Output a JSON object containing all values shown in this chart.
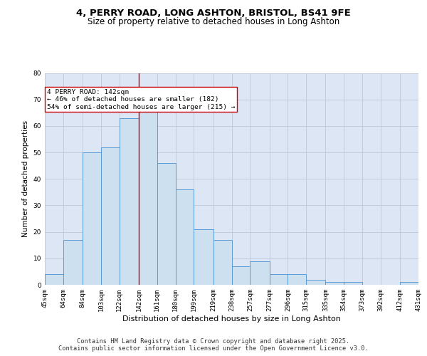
{
  "title_line1": "4, PERRY ROAD, LONG ASHTON, BRISTOL, BS41 9FE",
  "title_line2": "Size of property relative to detached houses in Long Ashton",
  "xlabel": "Distribution of detached houses by size in Long Ashton",
  "ylabel": "Number of detached properties",
  "bin_edges": [
    45,
    64,
    84,
    103,
    122,
    142,
    161,
    180,
    199,
    219,
    238,
    257,
    277,
    296,
    315,
    335,
    354,
    373,
    392,
    412,
    431
  ],
  "bar_heights": [
    4,
    17,
    50,
    52,
    63,
    67,
    46,
    36,
    21,
    17,
    7,
    9,
    4,
    4,
    2,
    1,
    1,
    0,
    0,
    1
  ],
  "tick_labels": [
    "45sqm",
    "64sqm",
    "84sqm",
    "103sqm",
    "122sqm",
    "142sqm",
    "161sqm",
    "180sqm",
    "199sqm",
    "219sqm",
    "238sqm",
    "257sqm",
    "277sqm",
    "296sqm",
    "315sqm",
    "335sqm",
    "354sqm",
    "373sqm",
    "392sqm",
    "412sqm",
    "431sqm"
  ],
  "bar_color": "#cce0f0",
  "bar_edge_color": "#5b9bd5",
  "grid_color": "#c0c8d8",
  "background_color": "#dce6f5",
  "reference_line_x": 142,
  "reference_line_color": "#cc0000",
  "annotation_text": "4 PERRY ROAD: 142sqm\n← 46% of detached houses are smaller (182)\n54% of semi-detached houses are larger (215) →",
  "annotation_box_color": "#ffffff",
  "annotation_box_edge": "#cc0000",
  "ylim": [
    0,
    80
  ],
  "yticks": [
    0,
    10,
    20,
    30,
    40,
    50,
    60,
    70,
    80
  ],
  "footer_text": "Contains HM Land Registry data © Crown copyright and database right 2025.\nContains public sector information licensed under the Open Government Licence v3.0.",
  "title_fontsize": 9.5,
  "subtitle_fontsize": 8.5,
  "axis_label_fontsize": 8,
  "tick_fontsize": 6.5,
  "footer_fontsize": 6.2,
  "ylabel_fontsize": 7.5
}
